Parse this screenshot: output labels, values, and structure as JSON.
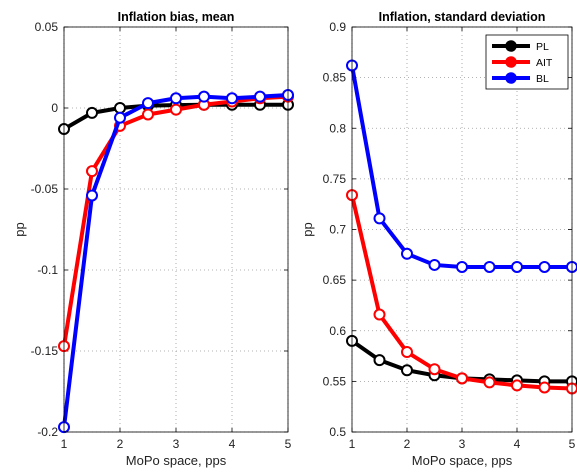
{
  "chart_data": [
    {
      "type": "line",
      "title": "Inflation bias, mean",
      "xlabel": "MoPo space, pps",
      "ylabel": "pp",
      "xlim": [
        1,
        5
      ],
      "ylim": [
        -0.2,
        0.05
      ],
      "x_ticks": [
        "1",
        "2",
        "3",
        "4",
        "5"
      ],
      "y_ticks": [
        "0.05",
        "0",
        "-0.05",
        "-0.1",
        "-0.15",
        "-0.2"
      ],
      "grid": "dotted",
      "x": [
        1,
        1.5,
        2,
        2.5,
        3,
        3.5,
        4,
        4.5,
        5
      ],
      "series": [
        {
          "name": "PL",
          "color": "#000000",
          "values": [
            -0.013,
            -0.003,
            0.0,
            0.0015,
            0.0018,
            0.002,
            0.002,
            0.002,
            0.002
          ]
        },
        {
          "name": "AIT",
          "color": "#ff0000",
          "values": [
            -0.147,
            -0.039,
            -0.011,
            -0.004,
            -0.001,
            0.002,
            0.004,
            0.006,
            0.007
          ]
        },
        {
          "name": "BL",
          "color": "#0000ff",
          "values": [
            -0.197,
            -0.054,
            -0.006,
            0.003,
            0.006,
            0.007,
            0.006,
            0.007,
            0.008
          ]
        }
      ]
    },
    {
      "type": "line",
      "title": "Inflation, standard deviation",
      "xlabel": "MoPo space, pps",
      "ylabel": "pp",
      "xlim": [
        1,
        5
      ],
      "ylim": [
        0.5,
        0.9
      ],
      "x_ticks": [
        "1",
        "2",
        "3",
        "4",
        "5"
      ],
      "y_ticks": [
        "0.9",
        "0.85",
        "0.8",
        "0.75",
        "0.7",
        "0.65",
        "0.6",
        "0.55",
        "0.5"
      ],
      "grid": "dotted",
      "legend": "top-right",
      "x": [
        1,
        1.5,
        2,
        2.5,
        3,
        3.5,
        4,
        4.5,
        5
      ],
      "series": [
        {
          "name": "PL",
          "color": "#000000",
          "values": [
            0.59,
            0.571,
            0.561,
            0.556,
            0.553,
            0.552,
            0.551,
            0.55,
            0.55
          ]
        },
        {
          "name": "AIT",
          "color": "#ff0000",
          "values": [
            0.734,
            0.616,
            0.579,
            0.562,
            0.553,
            0.549,
            0.546,
            0.544,
            0.543
          ]
        },
        {
          "name": "BL",
          "color": "#0000ff",
          "values": [
            0.862,
            0.711,
            0.676,
            0.665,
            0.663,
            0.663,
            0.663,
            0.663,
            0.663
          ]
        }
      ]
    }
  ]
}
